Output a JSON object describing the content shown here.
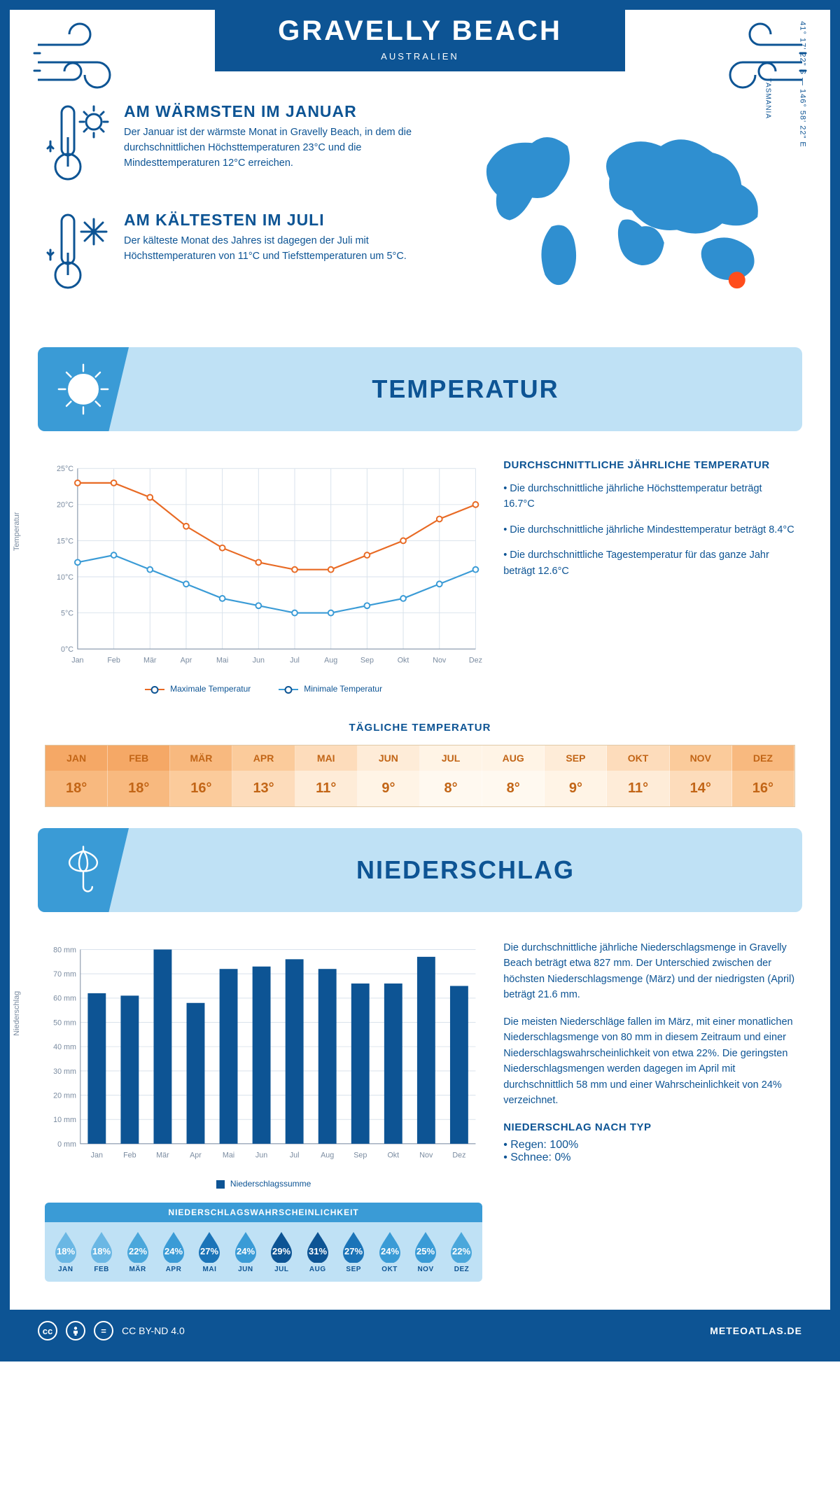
{
  "header": {
    "title": "GRAVELLY BEACH",
    "subtitle": "AUSTRALIEN"
  },
  "overview": {
    "warmest": {
      "title": "AM WÄRMSTEN IM JANUAR",
      "body": "Der Januar ist der wärmste Monat in Gravelly Beach, in dem die durchschnittlichen Höchsttemperaturen 23°C und die Mindesttemperaturen 12°C erreichen."
    },
    "coldest": {
      "title": "AM KÄLTESTEN IM JULI",
      "body": "Der kälteste Monat des Jahres ist dagegen der Juli mit Höchsttemperaturen von 11°C und Tiefsttemperaturen um 5°C."
    },
    "coords": "41° 17' 22\" S — 146° 58' 22\" E",
    "region": "TASMANIA"
  },
  "months_short": [
    "JAN",
    "FEB",
    "MÄR",
    "APR",
    "MAI",
    "JUN",
    "JUL",
    "AUG",
    "SEP",
    "OKT",
    "NOV",
    "DEZ"
  ],
  "months_axis": [
    "Jan",
    "Feb",
    "Mär",
    "Apr",
    "Mai",
    "Jun",
    "Jul",
    "Aug",
    "Sep",
    "Okt",
    "Nov",
    "Dez"
  ],
  "temp_section": {
    "banner": "TEMPERATUR",
    "chart": {
      "type": "line",
      "ylabel": "Temperatur",
      "ylim": [
        0,
        25
      ],
      "ytick_step": 5,
      "ytick_suffix": "°C",
      "series_max": {
        "label": "Maximale Temperatur",
        "color": "#e86a24",
        "values": [
          23,
          23,
          21,
          17,
          14,
          12,
          11,
          11,
          13,
          15,
          18,
          20
        ]
      },
      "series_min": {
        "label": "Minimale Temperatur",
        "color": "#3a9bd6",
        "values": [
          12,
          13,
          11,
          9,
          7,
          6,
          5,
          5,
          6,
          7,
          9,
          11
        ]
      },
      "grid_color": "#d9e2ec",
      "background": "#ffffff"
    },
    "avg_title": "DURCHSCHNITTLICHE JÄHRLICHE TEMPERATUR",
    "bullets": [
      "• Die durchschnittliche jährliche Höchsttemperatur beträgt 16.7°C",
      "• Die durchschnittliche jährliche Mindesttemperatur beträgt 8.4°C",
      "• Die durchschnittliche Tagestemperatur für das ganze Jahr beträgt 12.6°C"
    ],
    "daily_title": "TÄGLICHE TEMPERATUR",
    "daily": {
      "values": [
        "18°",
        "18°",
        "16°",
        "13°",
        "11°",
        "9°",
        "8°",
        "8°",
        "9°",
        "11°",
        "14°",
        "16°"
      ],
      "header_colors": [
        "#f5a866",
        "#f5a866",
        "#f8b97f",
        "#fbcb9b",
        "#fddcbb",
        "#feecd8",
        "#fff4e6",
        "#fff4e6",
        "#feecd8",
        "#fddcbb",
        "#fbcb9b",
        "#f8b97f"
      ],
      "value_colors": [
        "#f8b97f",
        "#f8b97f",
        "#fbcb9b",
        "#fddcbb",
        "#feecd8",
        "#fff4e6",
        "#fff9f0",
        "#fff9f0",
        "#fff4e6",
        "#feecd8",
        "#fddcbb",
        "#fbcb9b"
      ],
      "text_color": "#c26516"
    }
  },
  "precip_section": {
    "banner": "NIEDERSCHLAG",
    "chart": {
      "type": "bar",
      "ylabel": "Niederschlag",
      "ylim": [
        0,
        80
      ],
      "ytick_step": 10,
      "ytick_suffix": " mm",
      "values": [
        62,
        61,
        80,
        58,
        72,
        73,
        76,
        72,
        66,
        66,
        77,
        65
      ],
      "bar_color": "#0d5494",
      "legend": "Niederschlagssumme",
      "grid_color": "#d9e2ec"
    },
    "body1": "Die durchschnittliche jährliche Niederschlagsmenge in Gravelly Beach beträgt etwa 827 mm. Der Unterschied zwischen der höchsten Niederschlagsmenge (März) und der niedrigsten (April) beträgt 21.6 mm.",
    "body2": "Die meisten Niederschläge fallen im März, mit einer monatlichen Niederschlagsmenge von 80 mm in diesem Zeitraum und einer Niederschlagswahrscheinlichkeit von etwa 22%. Die geringsten Niederschlagsmengen werden dagegen im April mit durchschnittlich 58 mm und einer Wahrscheinlichkeit von 24% verzeichnet.",
    "type_title": "NIEDERSCHLAG NACH TYP",
    "type_bullets": [
      "• Regen: 100%",
      "• Schnee: 0%"
    ],
    "probability": {
      "title": "NIEDERSCHLAGSWAHRSCHEINLICHKEIT",
      "values": [
        "18%",
        "18%",
        "22%",
        "24%",
        "27%",
        "24%",
        "29%",
        "31%",
        "27%",
        "24%",
        "25%",
        "22%"
      ],
      "colors": [
        "#6ab7e4",
        "#6ab7e4",
        "#4aa7db",
        "#3a9bd6",
        "#1b74b8",
        "#3a9bd6",
        "#0d5494",
        "#0d5494",
        "#1b74b8",
        "#3a9bd6",
        "#3a9bd6",
        "#4aa7db"
      ]
    }
  },
  "footer": {
    "license": "CC BY-ND 4.0",
    "site": "METEOATLAS.DE"
  }
}
